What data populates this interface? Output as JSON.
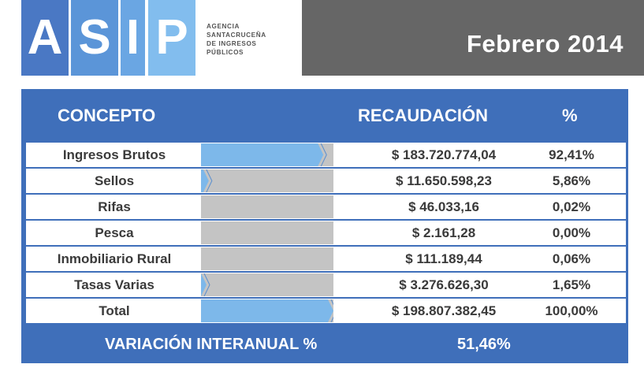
{
  "header": {
    "logo_letters": [
      "A",
      "S",
      "I",
      "P"
    ],
    "agency_lines": [
      "AGENCIA",
      "SANTACRUCEÑA",
      "DE INGRESOS",
      "PÚBLICOS"
    ],
    "period": "Febrero 2014"
  },
  "table": {
    "col_concepto": "CONCEPTO",
    "col_recaudacion": "RECAUDACIÓN",
    "col_pct": "%",
    "rows": [
      {
        "concept": "Ingresos Brutos",
        "amount": "$ 183.720.774,04",
        "pct": "92,41%",
        "share": 0.9241
      },
      {
        "concept": "Sellos",
        "amount": "$ 11.650.598,23",
        "pct": "5,86%",
        "share": 0.0586
      },
      {
        "concept": "Rifas",
        "amount": "$ 46.033,16",
        "pct": "0,02%",
        "share": 0.0002
      },
      {
        "concept": "Pesca",
        "amount": "$ 2.161,28",
        "pct": "0,00%",
        "share": 0.0
      },
      {
        "concept": "Inmobiliario Rural",
        "amount": "$ 111.189,44",
        "pct": "0,06%",
        "share": 0.0006
      },
      {
        "concept": "Tasas Varias",
        "amount": "$ 3.276.626,30",
        "pct": "1,65%",
        "share": 0.0165
      },
      {
        "concept": "Total",
        "amount": "$ 198.807.382,45",
        "pct": "100,00%",
        "share": 1.0
      }
    ],
    "footer_label": "VARIACIÓN INTERANUAL %",
    "footer_value": "51,46%"
  },
  "colors": {
    "bar_fill": "#7db8ea",
    "bar_empty": "#c4c4c4",
    "table_blue": "#3f6fba",
    "header_gray": "#666666"
  }
}
